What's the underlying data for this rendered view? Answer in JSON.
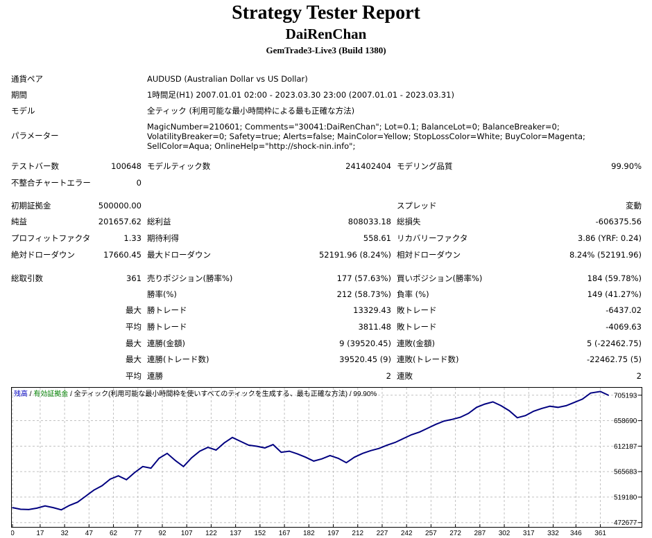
{
  "header": {
    "title": "Strategy Tester Report",
    "expert": "DaiRenChan",
    "server": "GemTrade3-Live3 (Build 1380)"
  },
  "info": {
    "symbol_label": "通貨ペア",
    "symbol_value": "AUDUSD (Australian Dollar vs US Dollar)",
    "period_label": "期間",
    "period_value": "1時間足(H1) 2007.01.01 02:00 - 2023.03.30 23:00 (2007.01.01 - 2023.03.31)",
    "model_label": "モデル",
    "model_value": "全ティック (利用可能な最小時間枠による最も正確な方法)",
    "params_label": "パラメーター",
    "params_value": "MagicNumber=210601; Comments=\"30041:DaiRenChan\"; Lot=0.1; BalanceLot=0; BalanceBreaker=0; VolatilityBreaker=0; Safety=true; Alerts=false; MainColor=Yellow; StopLossColor=White; BuyColor=Magenta; SellColor=Aqua; OnlineHelp=\"http://shock-nin.info\";"
  },
  "test": {
    "bars_label": "テストバー数",
    "bars_value": "100648",
    "ticks_label": "モデルティック数",
    "ticks_value": "241402404",
    "quality_label": "モデリング品質",
    "quality_value": "99.90%",
    "errors_label": "不整合チャートエラー",
    "errors_value": "0"
  },
  "results": {
    "deposit_label": "初期証拠金",
    "deposit_value": "500000.00",
    "spread_label": "スプレッド",
    "spread_value": "変動",
    "net_label": "純益",
    "net_value": "201657.62",
    "gross_profit_label": "総利益",
    "gross_profit_value": "808033.18",
    "gross_loss_label": "総損失",
    "gross_loss_value": "-606375.56",
    "pf_label": "プロフィットファクタ",
    "pf_value": "1.33",
    "payoff_label": "期待利得",
    "payoff_value": "558.61",
    "recovery_label": "リカバリーファクタ",
    "recovery_value": "3.86 (YRF: 0.24)",
    "abs_dd_label": "絶対ドローダウン",
    "abs_dd_value": "17660.45",
    "max_dd_label": "最大ドローダウン",
    "max_dd_value": "52191.96 (8.24%)",
    "rel_dd_label": "相対ドローダウン",
    "rel_dd_value": "8.24% (52191.96)"
  },
  "trades": {
    "total_label": "総取引数",
    "total_value": "361",
    "short_label": "売りポジション(勝率%)",
    "short_value": "177 (57.63%)",
    "long_label": "買いポジション(勝率%)",
    "long_value": "184 (59.78%)",
    "win_pct_label": "勝率(%)",
    "win_pct_value": "212 (58.73%)",
    "loss_pct_label": "負率 (%)",
    "loss_pct_value": "149 (41.27%)",
    "largest_label": "最大",
    "largest_win_label": "勝トレード",
    "largest_win_value": "13329.43",
    "largest_loss_label": "敗トレード",
    "largest_loss_value": "-6437.02",
    "average_label": "平均",
    "avg_win_label": "勝トレード",
    "avg_win_value": "3811.48",
    "avg_loss_label": "敗トレード",
    "avg_loss_value": "-4069.63",
    "max_label1": "最大",
    "cons_wins_money_label": "連勝(金額)",
    "cons_wins_money_value": "9 (39520.45)",
    "cons_loss_money_label": "連敗(金額)",
    "cons_loss_money_value": "5 (-22462.75)",
    "max_label2": "最大",
    "cons_profit_count_label": "連勝(トレード数)",
    "cons_profit_count_value": "39520.45 (9)",
    "cons_loss_count_label": "連敗(トレード数)",
    "cons_loss_count_value": "-22462.75 (5)",
    "avg_label2": "平均",
    "avg_cons_wins_label": "連勝",
    "avg_cons_wins_value": "2",
    "avg_cons_loss_label": "連敗",
    "avg_cons_loss_value": "2"
  },
  "chart_data": {
    "type": "line",
    "legend": {
      "balance": "残高",
      "sep1": " / ",
      "lots": "有効証拠金",
      "sep2": " / ",
      "model": "全ティック(利用可能な最小時間枠を使いすべてのティックを生成する、最も正確な方法)",
      "sep3": " / ",
      "quality": "99.90%"
    },
    "colors": {
      "line": "#000080",
      "balance_legend": "#0000c0",
      "lots_legend": "#008000",
      "grid": "#c0c0c0"
    },
    "xlim": [
      0,
      368
    ],
    "ylim": [
      466000,
      715000
    ],
    "x_ticks": [
      0,
      17,
      32,
      47,
      62,
      77,
      92,
      107,
      122,
      137,
      152,
      167,
      182,
      197,
      212,
      227,
      242,
      257,
      272,
      287,
      302,
      317,
      332,
      346,
      361
    ],
    "y_ticks": [
      472677,
      519180,
      565683,
      612187,
      658690,
      705193
    ],
    "series": [
      {
        "x": [
          0,
          5,
          10,
          15,
          20,
          25,
          30,
          35,
          40,
          45,
          50,
          55,
          60,
          65,
          70,
          75,
          80,
          85,
          90,
          95,
          100,
          105,
          110,
          115,
          120,
          125,
          130,
          135,
          140,
          145,
          150,
          155,
          160,
          165,
          170,
          175,
          180,
          185,
          190,
          195,
          200,
          205,
          210,
          215,
          220,
          225,
          230,
          235,
          240,
          245,
          250,
          255,
          260,
          265,
          270,
          275,
          280,
          285,
          290,
          295,
          300,
          305,
          310,
          315,
          320,
          325,
          330,
          335,
          340,
          345,
          350,
          355,
          361,
          366
        ],
        "y": [
          500000,
          497000,
          496500,
          499000,
          503000,
          500000,
          496000,
          504000,
          510000,
          521000,
          532000,
          540000,
          552000,
          558000,
          551000,
          564000,
          575000,
          572000,
          590000,
          599000,
          586000,
          575000,
          591000,
          603000,
          610000,
          605000,
          618000,
          628000,
          621000,
          614000,
          612000,
          609000,
          615000,
          601000,
          603000,
          598000,
          592000,
          585000,
          589000,
          595000,
          590000,
          582000,
          592000,
          599000,
          604000,
          608000,
          614000,
          619000,
          626000,
          633000,
          638000,
          645000,
          652000,
          658000,
          661000,
          665000,
          672000,
          683000,
          689000,
          693000,
          686000,
          677000,
          664000,
          668000,
          676000,
          681000,
          685000,
          683000,
          686000,
          692000,
          698000,
          709000,
          712000,
          705000
        ]
      }
    ]
  }
}
